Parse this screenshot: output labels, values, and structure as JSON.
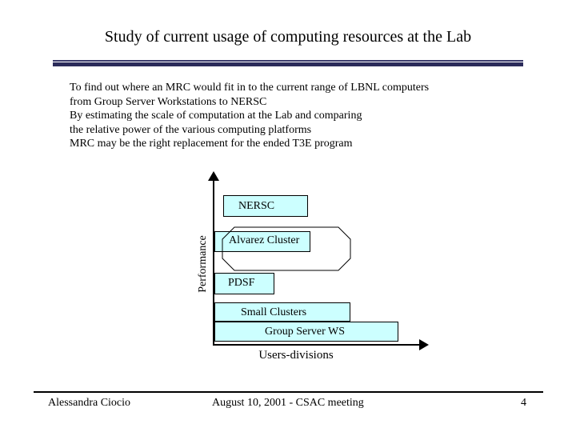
{
  "slide": {
    "title": "Study of current usage of computing resources at the Lab",
    "intro_lines": [
      "To find out where an MRC would fit in to the current range of LBNL computers",
      "from Group Server Workstations  to NERSC",
      "By estimating the scale of computation at the Lab and comparing",
      "the relative power of the various computing platforms",
      "MRC may be the right replacement for the ended T3E program"
    ]
  },
  "diagram": {
    "y_axis_label": "Performance",
    "x_axis_label": "Users-divisions",
    "boxes": {
      "nersc": "NERSC",
      "alvarez": "Alvarez Cluster",
      "pdsf": "PDSF",
      "small_clusters": "Small Clusters",
      "group_server": "Group Server WS"
    },
    "box_fill": "#ccffff"
  },
  "footer": {
    "author": "Alessandra Ciocio",
    "event": "August 10, 2001 - CSAC meeting",
    "page_number": "4"
  }
}
